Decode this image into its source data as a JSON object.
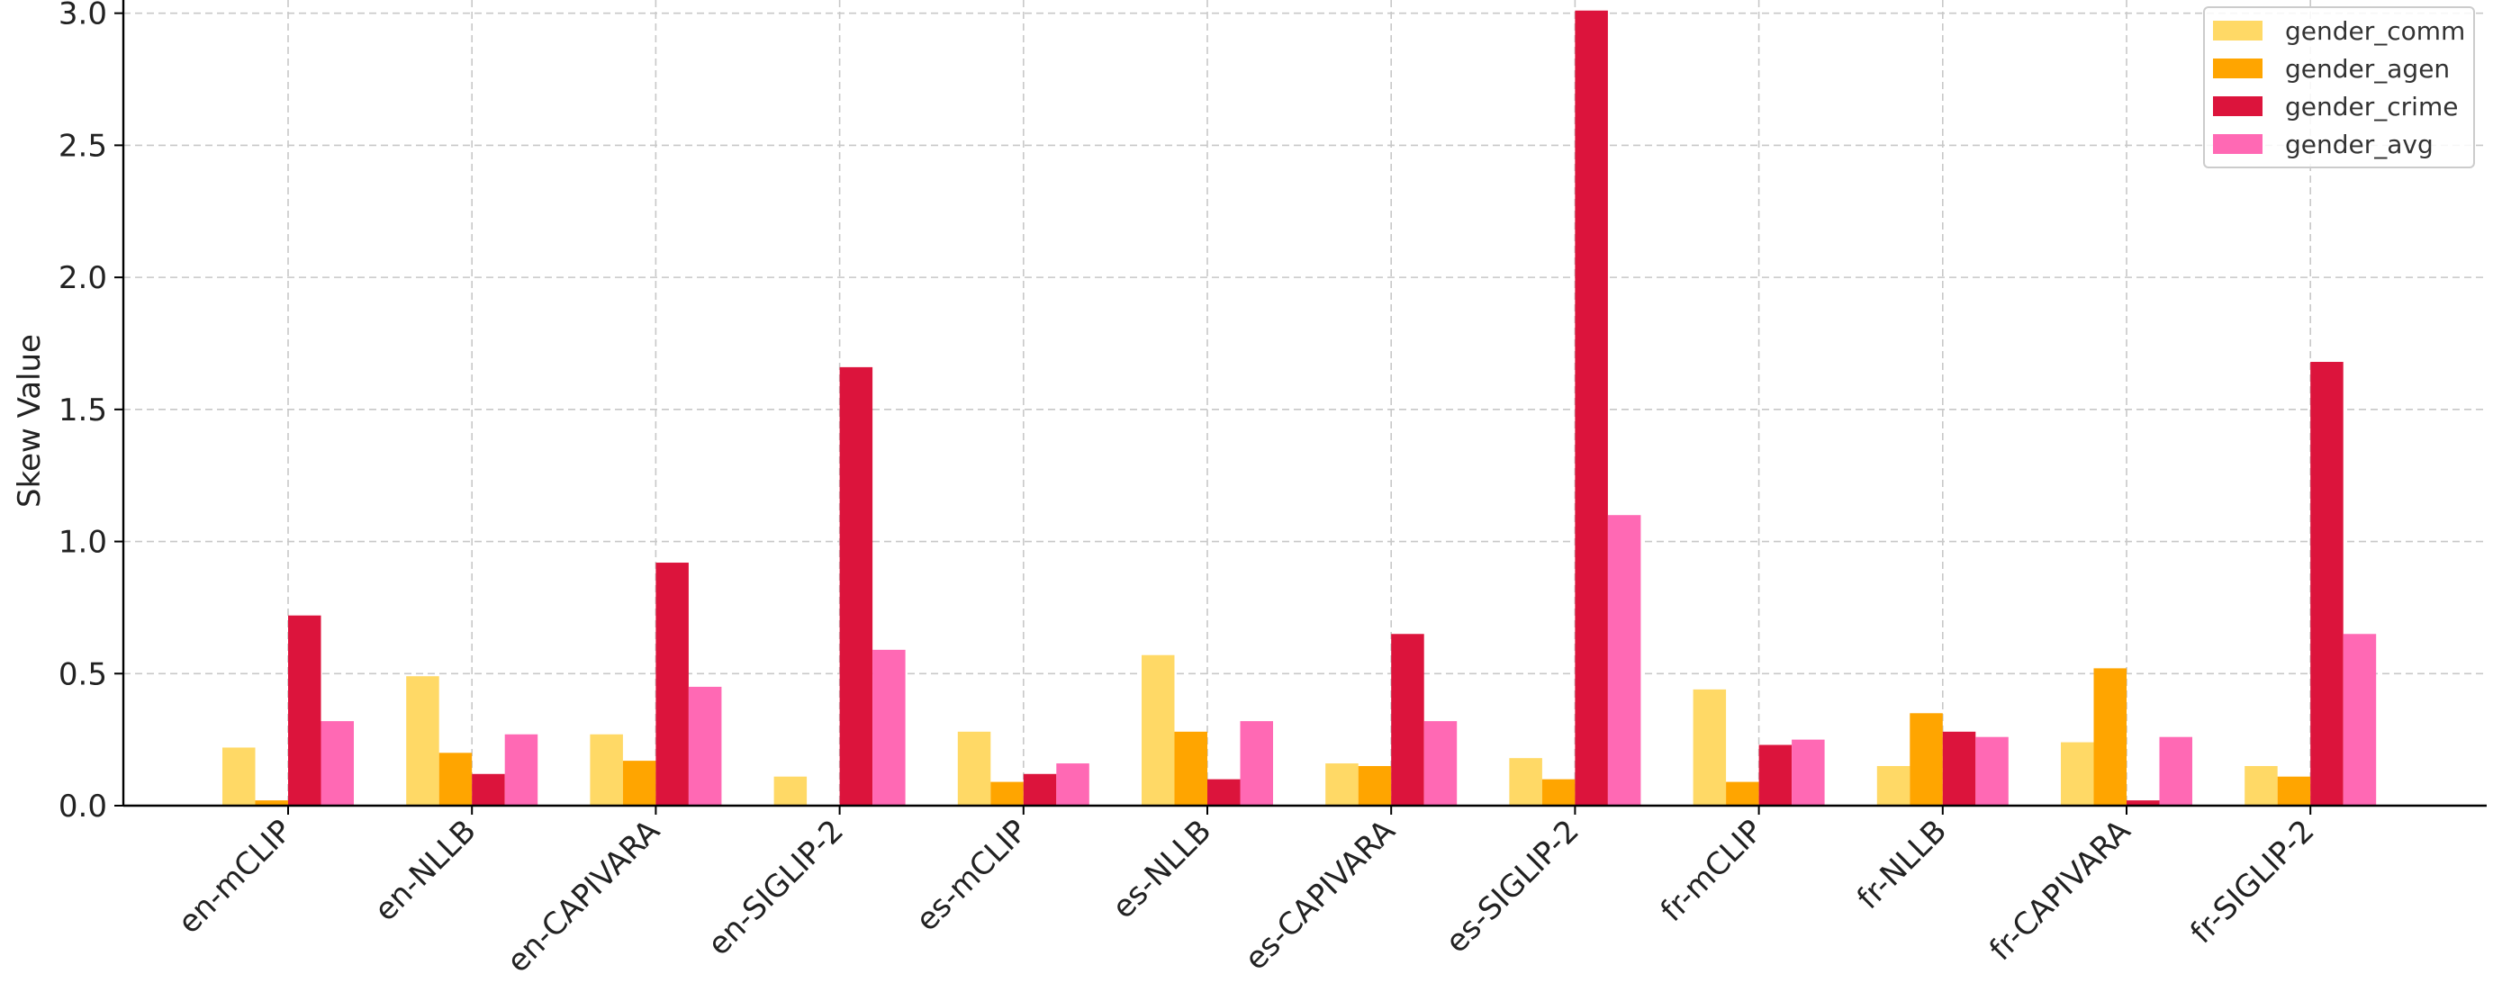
{
  "chart_data": {
    "type": "bar",
    "title": "",
    "xlabel": "",
    "ylabel": "Skew Value",
    "ylim": [
      0,
      3.05
    ],
    "yticks": [
      "0.0",
      "0.5",
      "1.0",
      "1.5",
      "2.0",
      "2.5",
      "3.0"
    ],
    "grid": true,
    "legend_position": "top-right",
    "categories": [
      "en-mCLIP",
      "en-NLLB",
      "en-CAPIVARA",
      "en-SIGLIP-2",
      "es-mCLIP",
      "es-NLLB",
      "es-CAPIVARA",
      "es-SIGLIP-2",
      "fr-mCLIP",
      "fr-NLLB",
      "fr-CAPIVARA",
      "fr-SIGLIP-2"
    ],
    "series": [
      {
        "name": "gender_comm",
        "color": "#FFD966",
        "values": [
          0.22,
          0.49,
          0.27,
          0.11,
          0.28,
          0.57,
          0.16,
          0.18,
          0.44,
          0.15,
          0.24,
          0.15
        ]
      },
      {
        "name": "gender_agen",
        "color": "#FFA500",
        "values": [
          0.02,
          0.2,
          0.17,
          0.0,
          0.09,
          0.28,
          0.15,
          0.1,
          0.09,
          0.35,
          0.52,
          0.11
        ]
      },
      {
        "name": "gender_crime",
        "color": "#DC143C",
        "values": [
          0.72,
          0.12,
          0.92,
          1.66,
          0.12,
          0.1,
          0.65,
          3.01,
          0.23,
          0.28,
          0.02,
          1.68
        ]
      },
      {
        "name": "gender_avg",
        "color": "#FF69B4",
        "values": [
          0.32,
          0.27,
          0.45,
          0.59,
          0.16,
          0.32,
          0.32,
          1.1,
          0.25,
          0.26,
          0.26,
          0.65
        ]
      }
    ]
  }
}
